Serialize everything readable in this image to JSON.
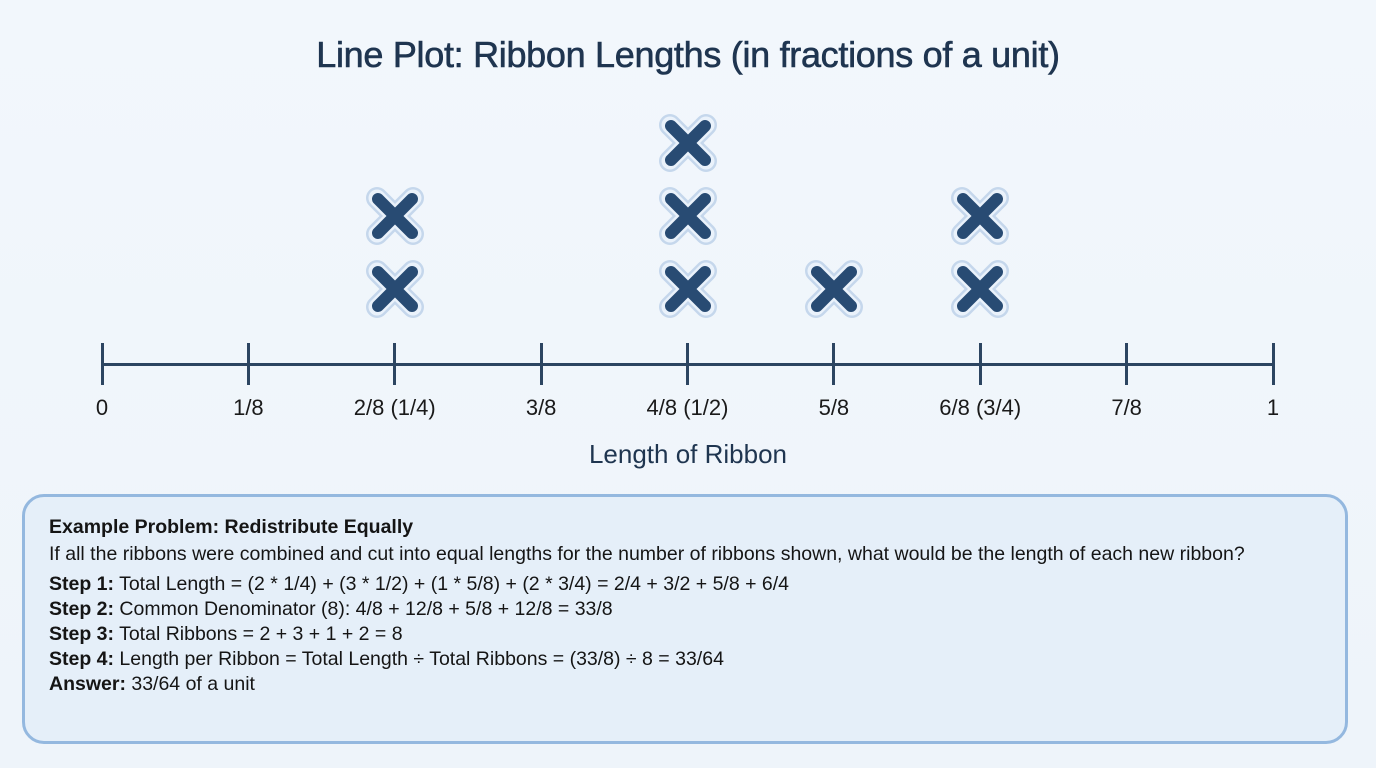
{
  "title": "Line Plot: Ribbon Lengths (in fractions of a unit)",
  "chart_data": {
    "type": "line_plot",
    "title": "Line Plot: Ribbon Lengths (in fractions of a unit)",
    "xlabel": "Length of Ribbon",
    "ylabel": "",
    "xlim": [
      0,
      1
    ],
    "categories": [
      "0",
      "1/8",
      "2/8 (1/4)",
      "3/8",
      "4/8 (1/2)",
      "5/8",
      "6/8 (3/4)",
      "7/8",
      "1"
    ],
    "tick_values": [
      0,
      0.125,
      0.25,
      0.375,
      0.5,
      0.625,
      0.75,
      0.875,
      1
    ],
    "values": [
      0,
      0,
      2,
      0,
      3,
      1,
      2,
      0,
      0
    ],
    "points": [
      {
        "x": "2/8 (1/4)",
        "value": 0.25,
        "count": 2
      },
      {
        "x": "4/8 (1/2)",
        "value": 0.5,
        "count": 3
      },
      {
        "x": "5/8",
        "value": 0.625,
        "count": 1
      },
      {
        "x": "6/8 (3/4)",
        "value": 0.75,
        "count": 2
      }
    ],
    "marker": "X",
    "marker_color": "#284b73",
    "grid": false,
    "legend": null
  },
  "axis": {
    "label": "Length of Ribbon",
    "ticks": [
      "0",
      "1/8",
      "2/8 (1/4)",
      "3/8",
      "4/8 (1/2)",
      "5/8",
      "6/8 (3/4)",
      "7/8",
      "1"
    ]
  },
  "problem": {
    "title": "Example Problem: Redistribute Equally",
    "question": "If all the ribbons were combined and cut into equal lengths for the number of ribbons shown, what would be the length of each new ribbon?",
    "steps": [
      {
        "label": "Step 1:",
        "text": " Total Length = (2 * 1/4) + (3 * 1/2) + (1 * 5/8) + (2 * 3/4) = 2/4 + 3/2 + 5/8 + 6/4"
      },
      {
        "label": "Step 2:",
        "text": " Common Denominator (8): 4/8 + 12/8 + 5/8 + 12/8 = 33/8"
      },
      {
        "label": "Step 3:",
        "text": " Total Ribbons = 2 + 3 + 1 + 2 = 8"
      },
      {
        "label": "Step 4:",
        "text": " Length per Ribbon = Total Length ÷ Total Ribbons = (33/8) ÷ 8 = 33/64"
      },
      {
        "label": "Answer:",
        "text": " 33/64 of a unit"
      }
    ]
  },
  "colors": {
    "background": "#f0f6fc",
    "title": "#1f3550",
    "axis": "#2c4561",
    "marker": "#284b73",
    "marker_halo": "#c5d7ec",
    "panel_bg": "#e5eff9",
    "panel_border": "#94b8df"
  }
}
